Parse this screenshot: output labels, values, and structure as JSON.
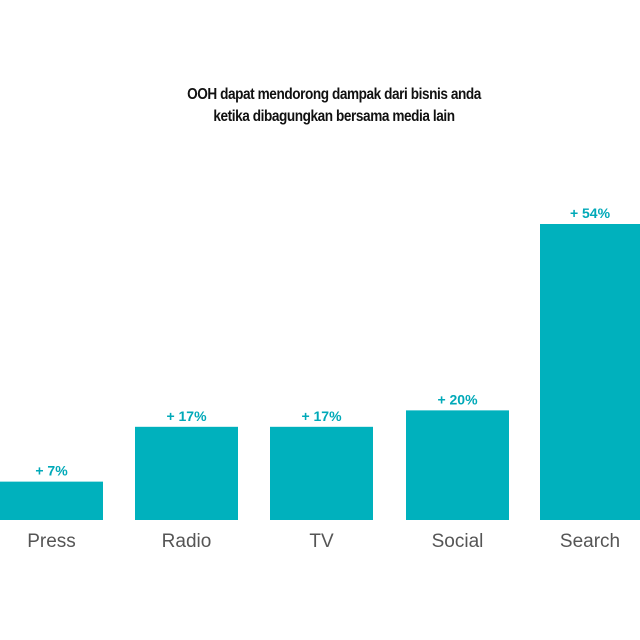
{
  "chart_data": {
    "type": "bar",
    "title": [
      "OOH dapat mendorong dampak dari bisnis anda",
      "ketika dibagungkan bersama media lain"
    ],
    "categories": [
      "Press",
      "Radio",
      "TV",
      "Social",
      "Search"
    ],
    "values": [
      7,
      17,
      17,
      20,
      54
    ],
    "data_labels": [
      "+ 7%",
      "+ 17%",
      "+ 17%",
      "+ 20%",
      "+ 54%"
    ],
    "xlabel": "",
    "ylabel": "",
    "ylim": [
      0,
      54
    ],
    "grid": false,
    "bar_color": "#00b1bd",
    "label_color": "#00a9b8",
    "category_color": "#555555"
  }
}
